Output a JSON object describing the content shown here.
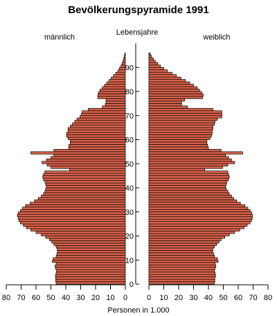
{
  "chart_data": {
    "type": "bar",
    "orientation": "horizontal",
    "layout": "population-pyramid",
    "title": "Bevölkerungspyramide 1991",
    "xlabel": "Personen in 1.000",
    "center_label": "Lebensjahre",
    "y_ticks": [
      0,
      10,
      20,
      30,
      40,
      50,
      60,
      70,
      80,
      90
    ],
    "x_ticks": [
      80,
      70,
      60,
      50,
      40,
      30,
      20,
      10,
      0
    ],
    "xlim": [
      0,
      80
    ],
    "ylim": [
      0,
      100
    ],
    "bar_color": "#d9624a",
    "edge_color": "#000000",
    "ages": [
      0,
      1,
      2,
      3,
      4,
      5,
      6,
      7,
      8,
      9,
      10,
      11,
      12,
      13,
      14,
      15,
      16,
      17,
      18,
      19,
      20,
      21,
      22,
      23,
      24,
      25,
      26,
      27,
      28,
      29,
      30,
      31,
      32,
      33,
      34,
      35,
      36,
      37,
      38,
      39,
      40,
      41,
      42,
      43,
      44,
      45,
      46,
      47,
      48,
      49,
      50,
      51,
      52,
      53,
      54,
      55,
      56,
      57,
      58,
      59,
      60,
      61,
      62,
      63,
      64,
      65,
      66,
      67,
      68,
      69,
      70,
      71,
      72,
      73,
      74,
      75,
      76,
      77,
      78,
      79,
      80,
      81,
      82,
      83,
      84,
      85,
      86,
      87,
      88,
      89,
      90,
      91,
      92,
      93,
      94,
      95
    ],
    "series": [
      {
        "name": "männlich",
        "side": "left",
        "values": [
          46.5,
          46.8,
          46.8,
          47.0,
          46.5,
          46.2,
          46.8,
          47.2,
          46.5,
          49.0,
          48.5,
          46.5,
          46.0,
          45.5,
          45.8,
          46.5,
          48.0,
          49.5,
          51.0,
          53.5,
          56.5,
          60.0,
          63.5,
          66.5,
          68.5,
          70.5,
          71.5,
          72.0,
          72.5,
          72.0,
          70.5,
          69.0,
          67.0,
          64.0,
          61.0,
          58.5,
          56.5,
          55.0,
          54.0,
          53.5,
          53.0,
          53.5,
          54.0,
          55.0,
          55.5,
          55.0,
          54.0,
          37.5,
          50.0,
          52.5,
          56.0,
          53.0,
          50.0,
          48.0,
          63.5,
          48.0,
          38.0,
          38.0,
          37.0,
          37.0,
          38.5,
          39.5,
          39.5,
          38.5,
          38.5,
          37.0,
          35.5,
          34.0,
          32.5,
          30.5,
          29.5,
          29.0,
          25.0,
          15.5,
          13.5,
          13.0,
          13.0,
          18.5,
          18.5,
          18.0,
          17.0,
          15.5,
          14.0,
          12.5,
          11.0,
          9.5,
          8.0,
          6.5,
          5.0,
          4.0,
          3.0,
          2.2,
          1.6,
          1.1,
          0.7,
          0.4
        ]
      },
      {
        "name": "weiblich",
        "side": "right",
        "values": [
          44.0,
          44.3,
          44.3,
          44.8,
          44.5,
          44.0,
          44.5,
          45.0,
          44.5,
          46.5,
          46.0,
          44.0,
          43.5,
          42.8,
          43.0,
          44.0,
          45.5,
          47.0,
          48.5,
          51.0,
          54.0,
          57.5,
          61.0,
          64.0,
          66.0,
          68.0,
          69.0,
          69.5,
          69.5,
          69.0,
          68.0,
          66.5,
          64.5,
          61.5,
          59.0,
          57.0,
          55.5,
          54.0,
          53.0,
          52.0,
          51.5,
          52.0,
          52.5,
          53.5,
          54.0,
          53.5,
          53.0,
          37.5,
          49.5,
          53.0,
          57.5,
          55.5,
          53.5,
          51.5,
          63.0,
          48.5,
          40.0,
          39.5,
          39.0,
          39.0,
          41.0,
          42.0,
          42.5,
          42.5,
          43.0,
          43.0,
          44.0,
          44.5,
          46.0,
          49.0,
          49.0,
          49.0,
          43.0,
          26.0,
          22.0,
          22.0,
          24.0,
          36.0,
          36.5,
          35.5,
          34.0,
          32.5,
          30.0,
          27.5,
          24.5,
          21.5,
          18.5,
          15.5,
          12.5,
          10.0,
          7.8,
          6.0,
          4.3,
          3.0,
          1.8,
          1.0
        ]
      }
    ]
  }
}
